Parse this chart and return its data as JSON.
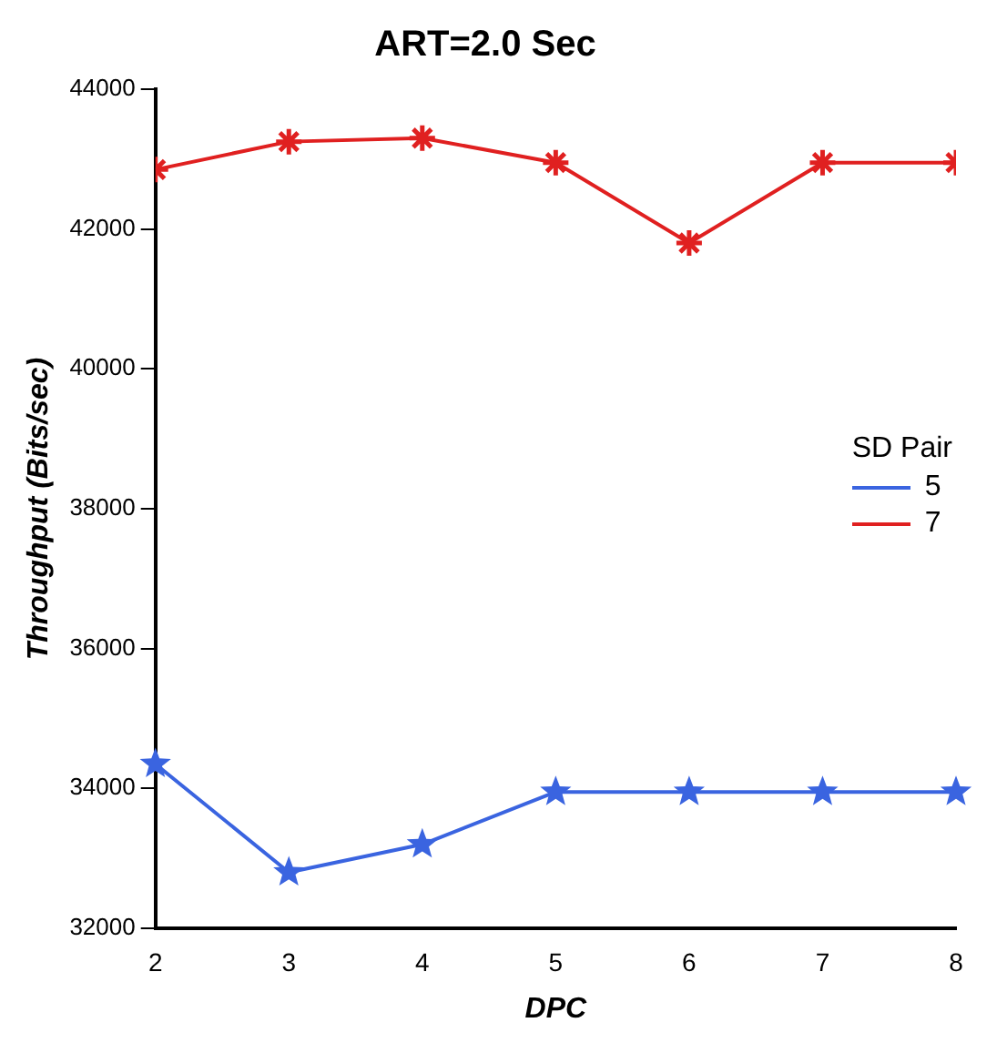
{
  "chart_data": {
    "type": "line",
    "title": "ART=2.0 Sec",
    "xlabel": "DPC",
    "ylabel": "Throughput (Bits/sec)",
    "legend_title": "SD Pair",
    "x": [
      2,
      3,
      4,
      5,
      6,
      7,
      8
    ],
    "series": [
      {
        "name": "5",
        "color": "#3a64e0",
        "marker": "star",
        "values": [
          34350,
          32800,
          33200,
          33950,
          33950,
          33950,
          33950
        ]
      },
      {
        "name": "7",
        "color": "#e02020",
        "marker": "cross",
        "values": [
          42850,
          43250,
          43300,
          42950,
          41800,
          42950,
          42950
        ]
      }
    ],
    "xlim": [
      2,
      8
    ],
    "xticks": [
      2,
      3,
      4,
      5,
      6,
      7,
      8
    ],
    "ylim": [
      32000,
      44000
    ],
    "yticks": [
      32000,
      34000,
      36000,
      38000,
      40000,
      42000,
      44000
    ],
    "grid": false,
    "legend": "right",
    "line_style": "solid"
  }
}
